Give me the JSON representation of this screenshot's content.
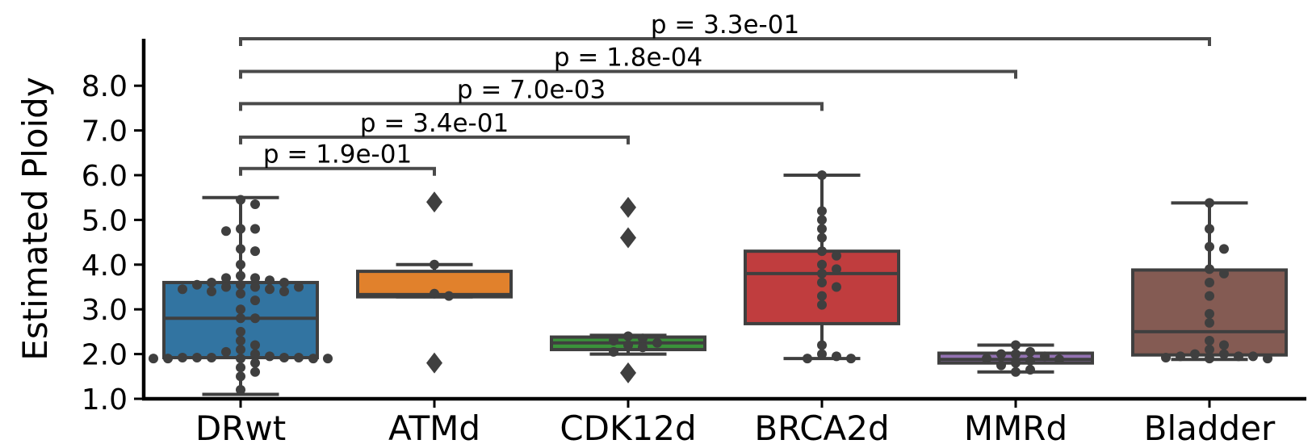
{
  "chart_data": {
    "type": "box",
    "ylabel": "Estimated Ploidy",
    "ylim": [
      1.0,
      9.0
    ],
    "yticks": [
      "1.0",
      "2.0",
      "3.0",
      "4.0",
      "5.0",
      "6.0",
      "7.0",
      "8.0"
    ],
    "categories": [
      "DRwt",
      "ATMd",
      "CDK12d",
      "BRCA2d",
      "MMRd",
      "Bladder"
    ],
    "boxes": [
      {
        "category": "DRwt",
        "color": "#3274a1",
        "q1": 1.92,
        "median": 2.8,
        "q3": 3.6,
        "whisker_low": 1.1,
        "whisker_high": 5.5,
        "outliers": [],
        "points": [
          5.45,
          5.35,
          4.8,
          4.8,
          4.75,
          4.35,
          4.3,
          4.0,
          3.75,
          3.7,
          3.7,
          3.65,
          3.6,
          3.6,
          3.55,
          3.55,
          3.5,
          3.5,
          3.5,
          3.45,
          3.45,
          3.4,
          3.4,
          3.35,
          3.2,
          3.0,
          2.8,
          2.8,
          2.5,
          2.3,
          2.2,
          2.1,
          2.05,
          2.0,
          1.95,
          1.92,
          1.92,
          1.92,
          1.92,
          1.92,
          1.9,
          1.9,
          1.9,
          1.9,
          1.9,
          1.8,
          1.7,
          1.6,
          1.5,
          1.2
        ]
      },
      {
        "category": "ATMd",
        "color": "#e1812c",
        "q1": 3.28,
        "median": 3.33,
        "q3": 3.85,
        "whisker_low": 3.28,
        "whisker_high": 4.0,
        "outliers": [
          5.4,
          1.8
        ],
        "points": [
          4.0,
          3.35,
          3.3
        ]
      },
      {
        "category": "CDK12d",
        "color": "#3a923a",
        "q1": 2.1,
        "median": 2.25,
        "q3": 2.38,
        "whisker_low": 2.0,
        "whisker_high": 2.42,
        "outliers": [
          5.28,
          4.6,
          1.58
        ],
        "points": [
          2.4,
          2.35,
          2.3,
          2.25,
          2.2,
          2.15,
          2.05
        ]
      },
      {
        "category": "BRCA2d",
        "color": "#c03d3e",
        "q1": 2.68,
        "median": 3.8,
        "q3": 4.3,
        "whisker_low": 1.9,
        "whisker_high": 6.0,
        "outliers": [],
        "points": [
          6.0,
          5.2,
          5.0,
          4.8,
          4.6,
          4.3,
          4.2,
          4.0,
          3.9,
          3.8,
          3.6,
          3.5,
          3.3,
          3.1,
          2.2,
          2.0,
          1.95,
          1.9,
          1.9
        ]
      },
      {
        "category": "MMRd",
        "color": "#9372b2",
        "q1": 1.8,
        "median": 1.88,
        "q3": 2.02,
        "whisker_low": 1.6,
        "whisker_high": 2.2,
        "outliers": [],
        "points": [
          2.2,
          2.05,
          2.0,
          2.0,
          1.95,
          1.9,
          1.88,
          1.85,
          1.8,
          1.75,
          1.65,
          1.6
        ]
      },
      {
        "category": "Bladder",
        "color": "#845b53",
        "q1": 1.98,
        "median": 2.5,
        "q3": 3.88,
        "whisker_low": 1.88,
        "whisker_high": 5.38,
        "outliers": [],
        "points": [
          5.38,
          4.8,
          4.4,
          4.35,
          3.9,
          3.8,
          3.6,
          3.3,
          2.9,
          2.7,
          2.3,
          2.2,
          2.1,
          2.0,
          2.0,
          1.95,
          1.95,
          1.95,
          1.92,
          1.9,
          1.9
        ]
      }
    ],
    "annotations": [
      {
        "from": "DRwt",
        "to": "ATMd",
        "text": "p = 1.9e-01",
        "y": 6.15
      },
      {
        "from": "DRwt",
        "to": "CDK12d",
        "text": "p = 3.4e-01",
        "y": 6.85
      },
      {
        "from": "DRwt",
        "to": "BRCA2d",
        "text": "p = 7.0e-03",
        "y": 7.6
      },
      {
        "from": "DRwt",
        "to": "MMRd",
        "text": "p = 1.8e-04",
        "y": 8.32
      },
      {
        "from": "DRwt",
        "to": "Bladder",
        "text": "p = 3.3e-01",
        "y": 9.05
      }
    ]
  }
}
